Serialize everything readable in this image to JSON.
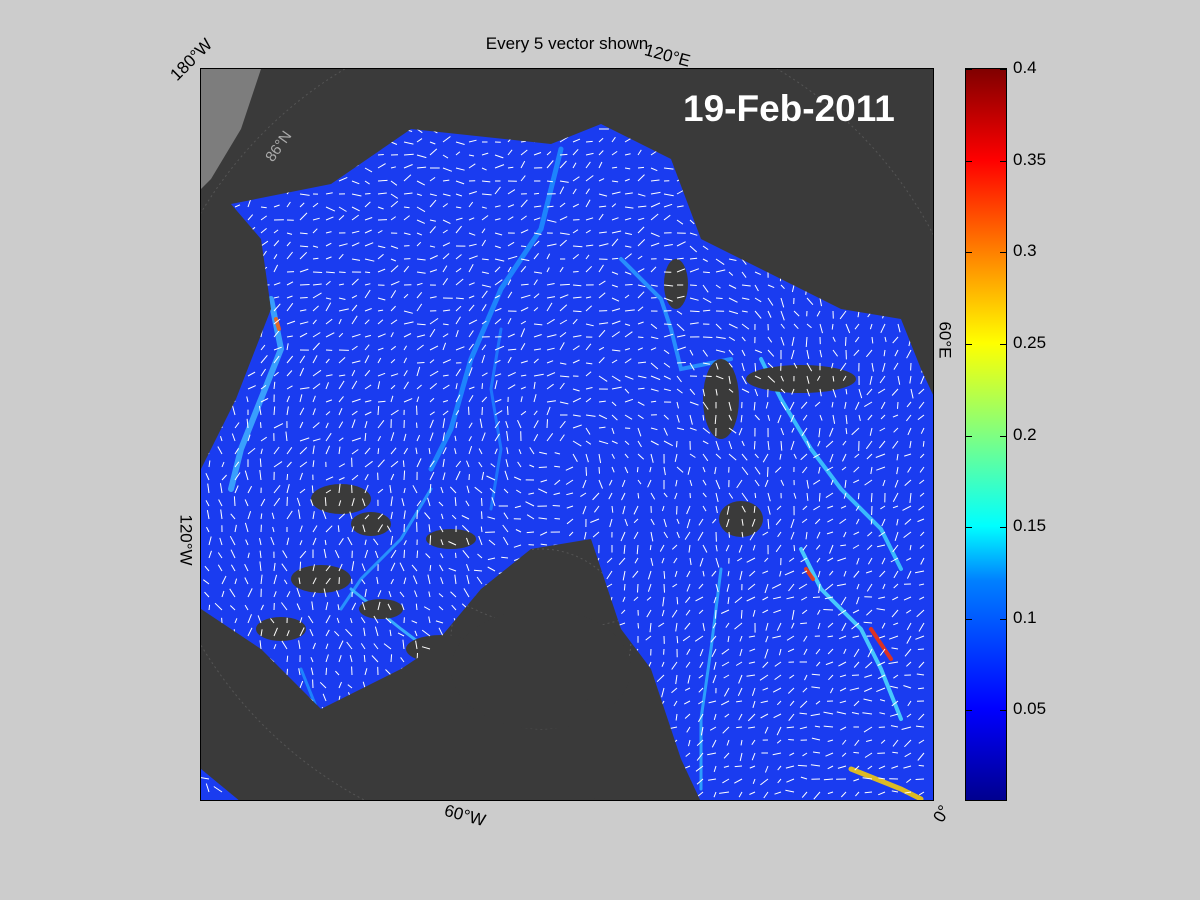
{
  "figure": {
    "title": "Every 5 vector shown",
    "date": "19-Feb-2011",
    "longitude_labels": [
      {
        "text": "180°W",
        "rotation": -45
      },
      {
        "text": "120°E",
        "rotation": 15
      },
      {
        "text": "60°E",
        "rotation": 90
      },
      {
        "text": "120°W",
        "rotation": 90
      },
      {
        "text": "60°W",
        "rotation": 15
      },
      {
        "text": "0°",
        "rotation": -60
      }
    ],
    "latitude_label": "86°N"
  },
  "colorbar": {
    "min": 0,
    "max": 0.4,
    "ticks": [
      "0.4",
      "0.35",
      "0.3",
      "0.25",
      "0.2",
      "0.15",
      "0.1",
      "0.05"
    ],
    "tick_values": [
      0.4,
      0.35,
      0.3,
      0.25,
      0.2,
      0.15,
      0.1,
      0.05
    ],
    "colormap": "jet"
  },
  "colors": {
    "background": "#cccccc",
    "land": "#3a3a3a",
    "ocean": "#1a3cf0",
    "vector": "#ffffff",
    "highlight": "#40e0ff"
  }
}
